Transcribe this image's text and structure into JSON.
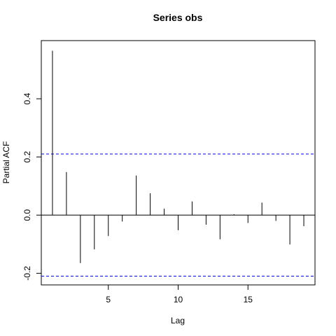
{
  "chart_data": {
    "type": "bar",
    "title": "Series  obs",
    "xlabel": "Lag",
    "ylabel": "Partial ACF",
    "xlim": [
      0.2,
      19.8
    ],
    "ylim": [
      -0.24,
      0.6
    ],
    "xticks": [
      5,
      10,
      15
    ],
    "yticks": [
      -0.2,
      0.0,
      0.2,
      0.4
    ],
    "ytick_labels": [
      "-0.2",
      "0.0",
      "0.2",
      "0.4"
    ],
    "conf_limits": [
      0.21,
      -0.21
    ],
    "conf_color": "#0000ff",
    "zero_line": 0.0,
    "lags": [
      1,
      2,
      3,
      4,
      5,
      6,
      7,
      8,
      9,
      10,
      11,
      12,
      13,
      14,
      15,
      16,
      17,
      18,
      19
    ],
    "values": [
      0.565,
      0.148,
      -0.165,
      -0.118,
      -0.072,
      -0.022,
      0.136,
      0.075,
      0.022,
      -0.052,
      0.047,
      -0.033,
      -0.083,
      0.003,
      -0.027,
      0.043,
      -0.02,
      -0.101,
      -0.038
    ]
  }
}
